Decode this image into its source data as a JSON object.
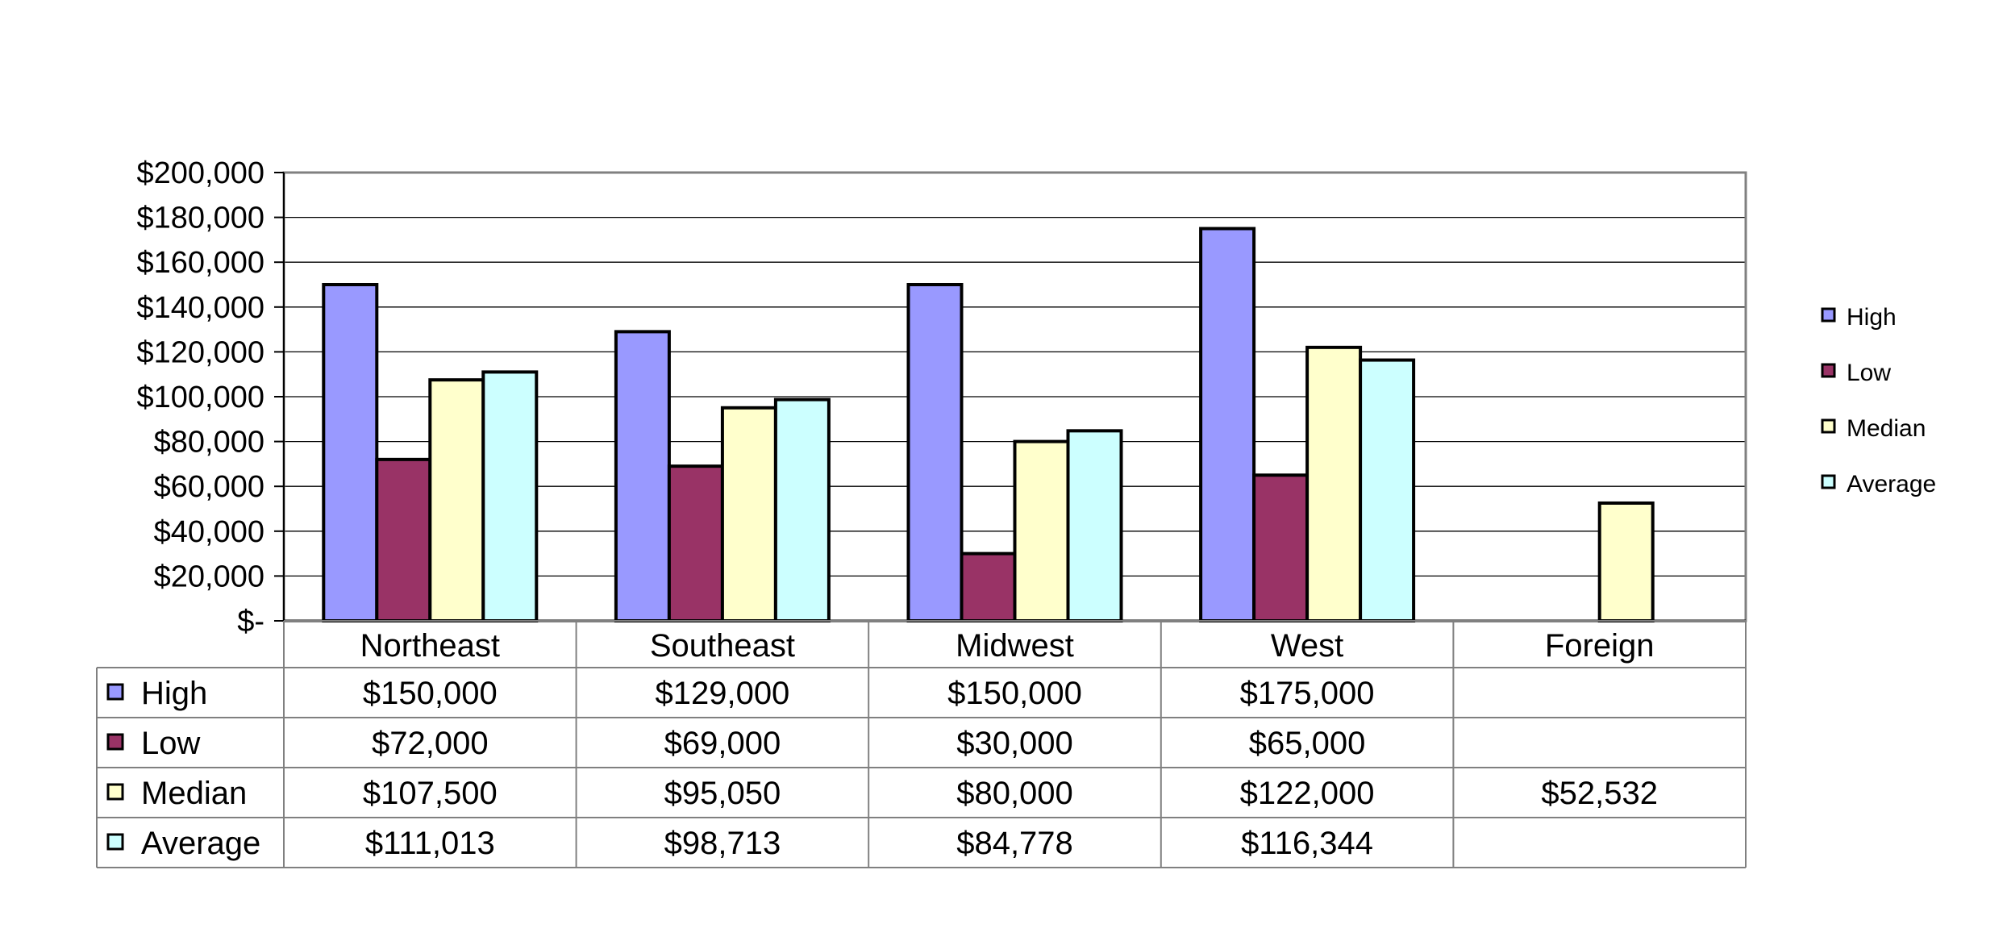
{
  "chart_data": {
    "type": "bar",
    "categories": [
      "Northeast",
      "Southeast",
      "Midwest",
      "West",
      "Foreign"
    ],
    "series": [
      {
        "name": "High",
        "color": "#9999ff",
        "values": [
          150000,
          129000,
          150000,
          175000,
          null
        ],
        "labels": [
          "$150,000",
          "$129,000",
          "$150,000",
          "$175,000",
          ""
        ]
      },
      {
        "name": "Low",
        "color": "#993366",
        "values": [
          72000,
          69000,
          30000,
          65000,
          null
        ],
        "labels": [
          "$72,000",
          "$69,000",
          "$30,000",
          "$65,000",
          ""
        ]
      },
      {
        "name": "Median",
        "color": "#ffffcc",
        "values": [
          107500,
          95050,
          80000,
          122000,
          52532
        ],
        "labels": [
          "$107,500",
          "$95,050",
          "$80,000",
          "$122,000",
          "$52,532"
        ]
      },
      {
        "name": "Average",
        "color": "#ccffff",
        "values": [
          111013,
          98713,
          84778,
          116344,
          null
        ],
        "labels": [
          "$111,013",
          "$98,713",
          "$84,778",
          "$116,344",
          ""
        ]
      }
    ],
    "y_ticks": [
      {
        "value": 0,
        "label": "$-"
      },
      {
        "value": 20000,
        "label": "$20,000"
      },
      {
        "value": 40000,
        "label": "$40,000"
      },
      {
        "value": 60000,
        "label": "$60,000"
      },
      {
        "value": 80000,
        "label": "$80,000"
      },
      {
        "value": 100000,
        "label": "$100,000"
      },
      {
        "value": 120000,
        "label": "$120,000"
      },
      {
        "value": 140000,
        "label": "$140,000"
      },
      {
        "value": 160000,
        "label": "$160,000"
      },
      {
        "value": 180000,
        "label": "$180,000"
      },
      {
        "value": 200000,
        "label": "$200,000"
      }
    ],
    "ylim": [
      0,
      200000
    ],
    "grid": true,
    "legend": {
      "placement": "right",
      "entries": [
        "High",
        "Low",
        "Median",
        "Average"
      ]
    },
    "data_table": true,
    "title": "",
    "xlabel": "",
    "ylabel": ""
  }
}
